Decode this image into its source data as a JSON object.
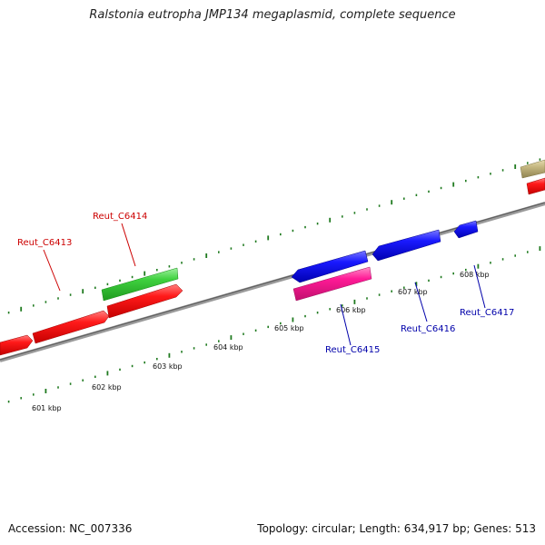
{
  "header": {
    "title": "Ralstonia eutropha JMP134 megaplasmid, complete sequence"
  },
  "footer": {
    "accession": "Accession: NC_007336",
    "summary": "Topology: circular; Length: 634,917 bp; Genes: 513"
  },
  "colors": {
    "backbone": "#8a8a8a",
    "ruler_ticks": "#1f7a1f",
    "forward_cds": "#ff0000",
    "forward_other": "#33cc33",
    "reverse_cds": "#0000ff",
    "reverse_other": "#ff1493",
    "misc_feature": "#bdb07a",
    "label_forward": "#cc0000",
    "label_reverse": "#0000aa"
  },
  "ruler_labels": [
    "601 kbp",
    "602 kbp",
    "603 kbp",
    "604 kbp",
    "605 kbp",
    "606 kbp",
    "607 kbp",
    "608 kbp"
  ],
  "gene_labels": [
    {
      "name": "Reut_C6413",
      "strand": "forward"
    },
    {
      "name": "Reut_C6414",
      "strand": "forward"
    },
    {
      "name": "Reut_C6415",
      "strand": "reverse"
    },
    {
      "name": "Reut_C6416",
      "strand": "reverse"
    },
    {
      "name": "Reut_C6417",
      "strand": "reverse"
    }
  ]
}
